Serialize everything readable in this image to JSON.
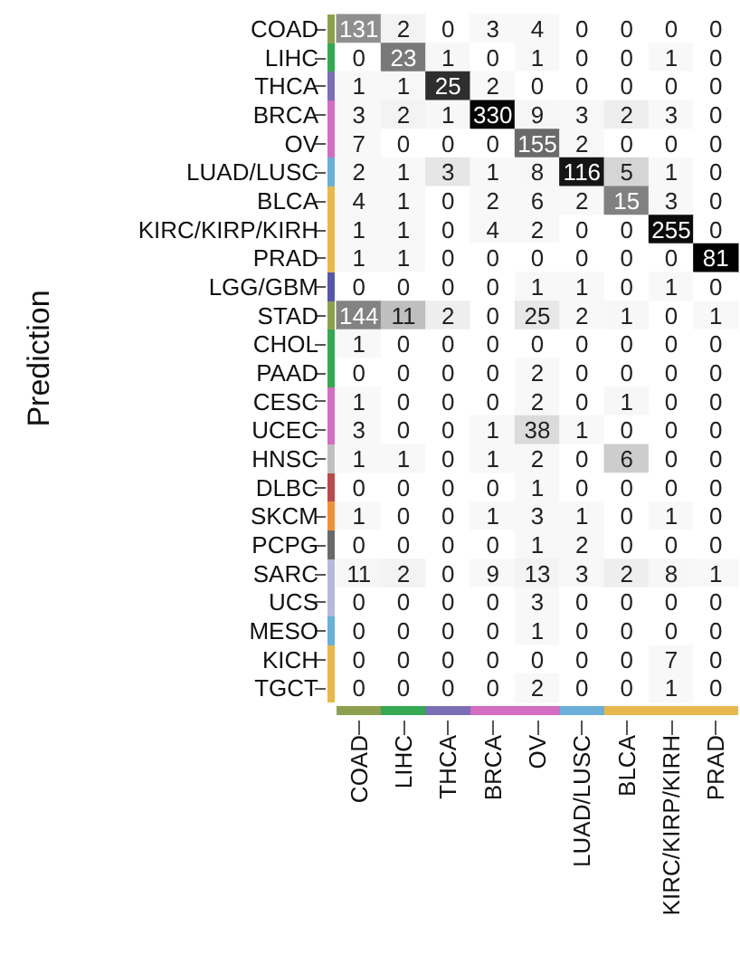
{
  "chart_data": {
    "type": "heatmap",
    "ylabel": "Prediction",
    "data_labels": true,
    "categories": [
      "COAD",
      "LIHC",
      "THCA",
      "BRCA",
      "OV",
      "LUAD/LUSC",
      "BLCA",
      "KIRC/KIRP/KIRH",
      "PRAD"
    ],
    "y_categories": [
      "COAD",
      "LIHC",
      "THCA",
      "BRCA",
      "OV",
      "LUAD/LUSC",
      "BLCA",
      "KIRC/KIRP/KIRH",
      "PRAD",
      "LGG/GBM",
      "STAD",
      "CHOL",
      "PAAD",
      "CESC",
      "UCEC",
      "HNSC",
      "DLBC",
      "SKCM",
      "PCPG",
      "SARC",
      "UCS",
      "MESO",
      "KICH",
      "TGCT"
    ],
    "cells": [
      [
        131,
        2,
        0,
        3,
        4,
        0,
        0,
        0,
        0
      ],
      [
        0,
        23,
        1,
        0,
        1,
        0,
        0,
        1,
        0
      ],
      [
        1,
        1,
        25,
        2,
        0,
        0,
        0,
        0,
        0
      ],
      [
        3,
        2,
        1,
        330,
        9,
        3,
        2,
        3,
        0
      ],
      [
        7,
        0,
        0,
        0,
        155,
        2,
        0,
        0,
        0
      ],
      [
        2,
        1,
        3,
        1,
        8,
        116,
        5,
        1,
        0
      ],
      [
        4,
        1,
        0,
        2,
        6,
        2,
        15,
        3,
        0
      ],
      [
        1,
        1,
        0,
        4,
        2,
        0,
        0,
        255,
        0
      ],
      [
        1,
        1,
        0,
        0,
        0,
        0,
        0,
        0,
        81
      ],
      [
        0,
        0,
        0,
        0,
        1,
        1,
        0,
        1,
        0
      ],
      [
        144,
        11,
        2,
        0,
        25,
        2,
        1,
        0,
        1
      ],
      [
        1,
        0,
        0,
        0,
        0,
        0,
        0,
        0,
        0
      ],
      [
        0,
        0,
        0,
        0,
        2,
        0,
        0,
        0,
        0
      ],
      [
        1,
        0,
        0,
        0,
        2,
        0,
        1,
        0,
        0
      ],
      [
        3,
        0,
        0,
        1,
        38,
        1,
        0,
        0,
        0
      ],
      [
        1,
        1,
        0,
        1,
        2,
        0,
        6,
        0,
        0
      ],
      [
        0,
        0,
        0,
        0,
        1,
        0,
        0,
        0,
        0
      ],
      [
        1,
        0,
        0,
        1,
        3,
        1,
        0,
        1,
        0
      ],
      [
        0,
        0,
        0,
        0,
        1,
        2,
        0,
        0,
        0
      ],
      [
        11,
        2,
        0,
        9,
        13,
        3,
        2,
        8,
        1
      ],
      [
        0,
        0,
        0,
        0,
        3,
        0,
        0,
        0,
        0
      ],
      [
        0,
        0,
        0,
        0,
        1,
        0,
        0,
        0,
        0
      ],
      [
        0,
        0,
        0,
        0,
        0,
        0,
        0,
        7,
        0
      ],
      [
        0,
        0,
        0,
        0,
        2,
        0,
        0,
        1,
        0
      ]
    ]
  }
}
